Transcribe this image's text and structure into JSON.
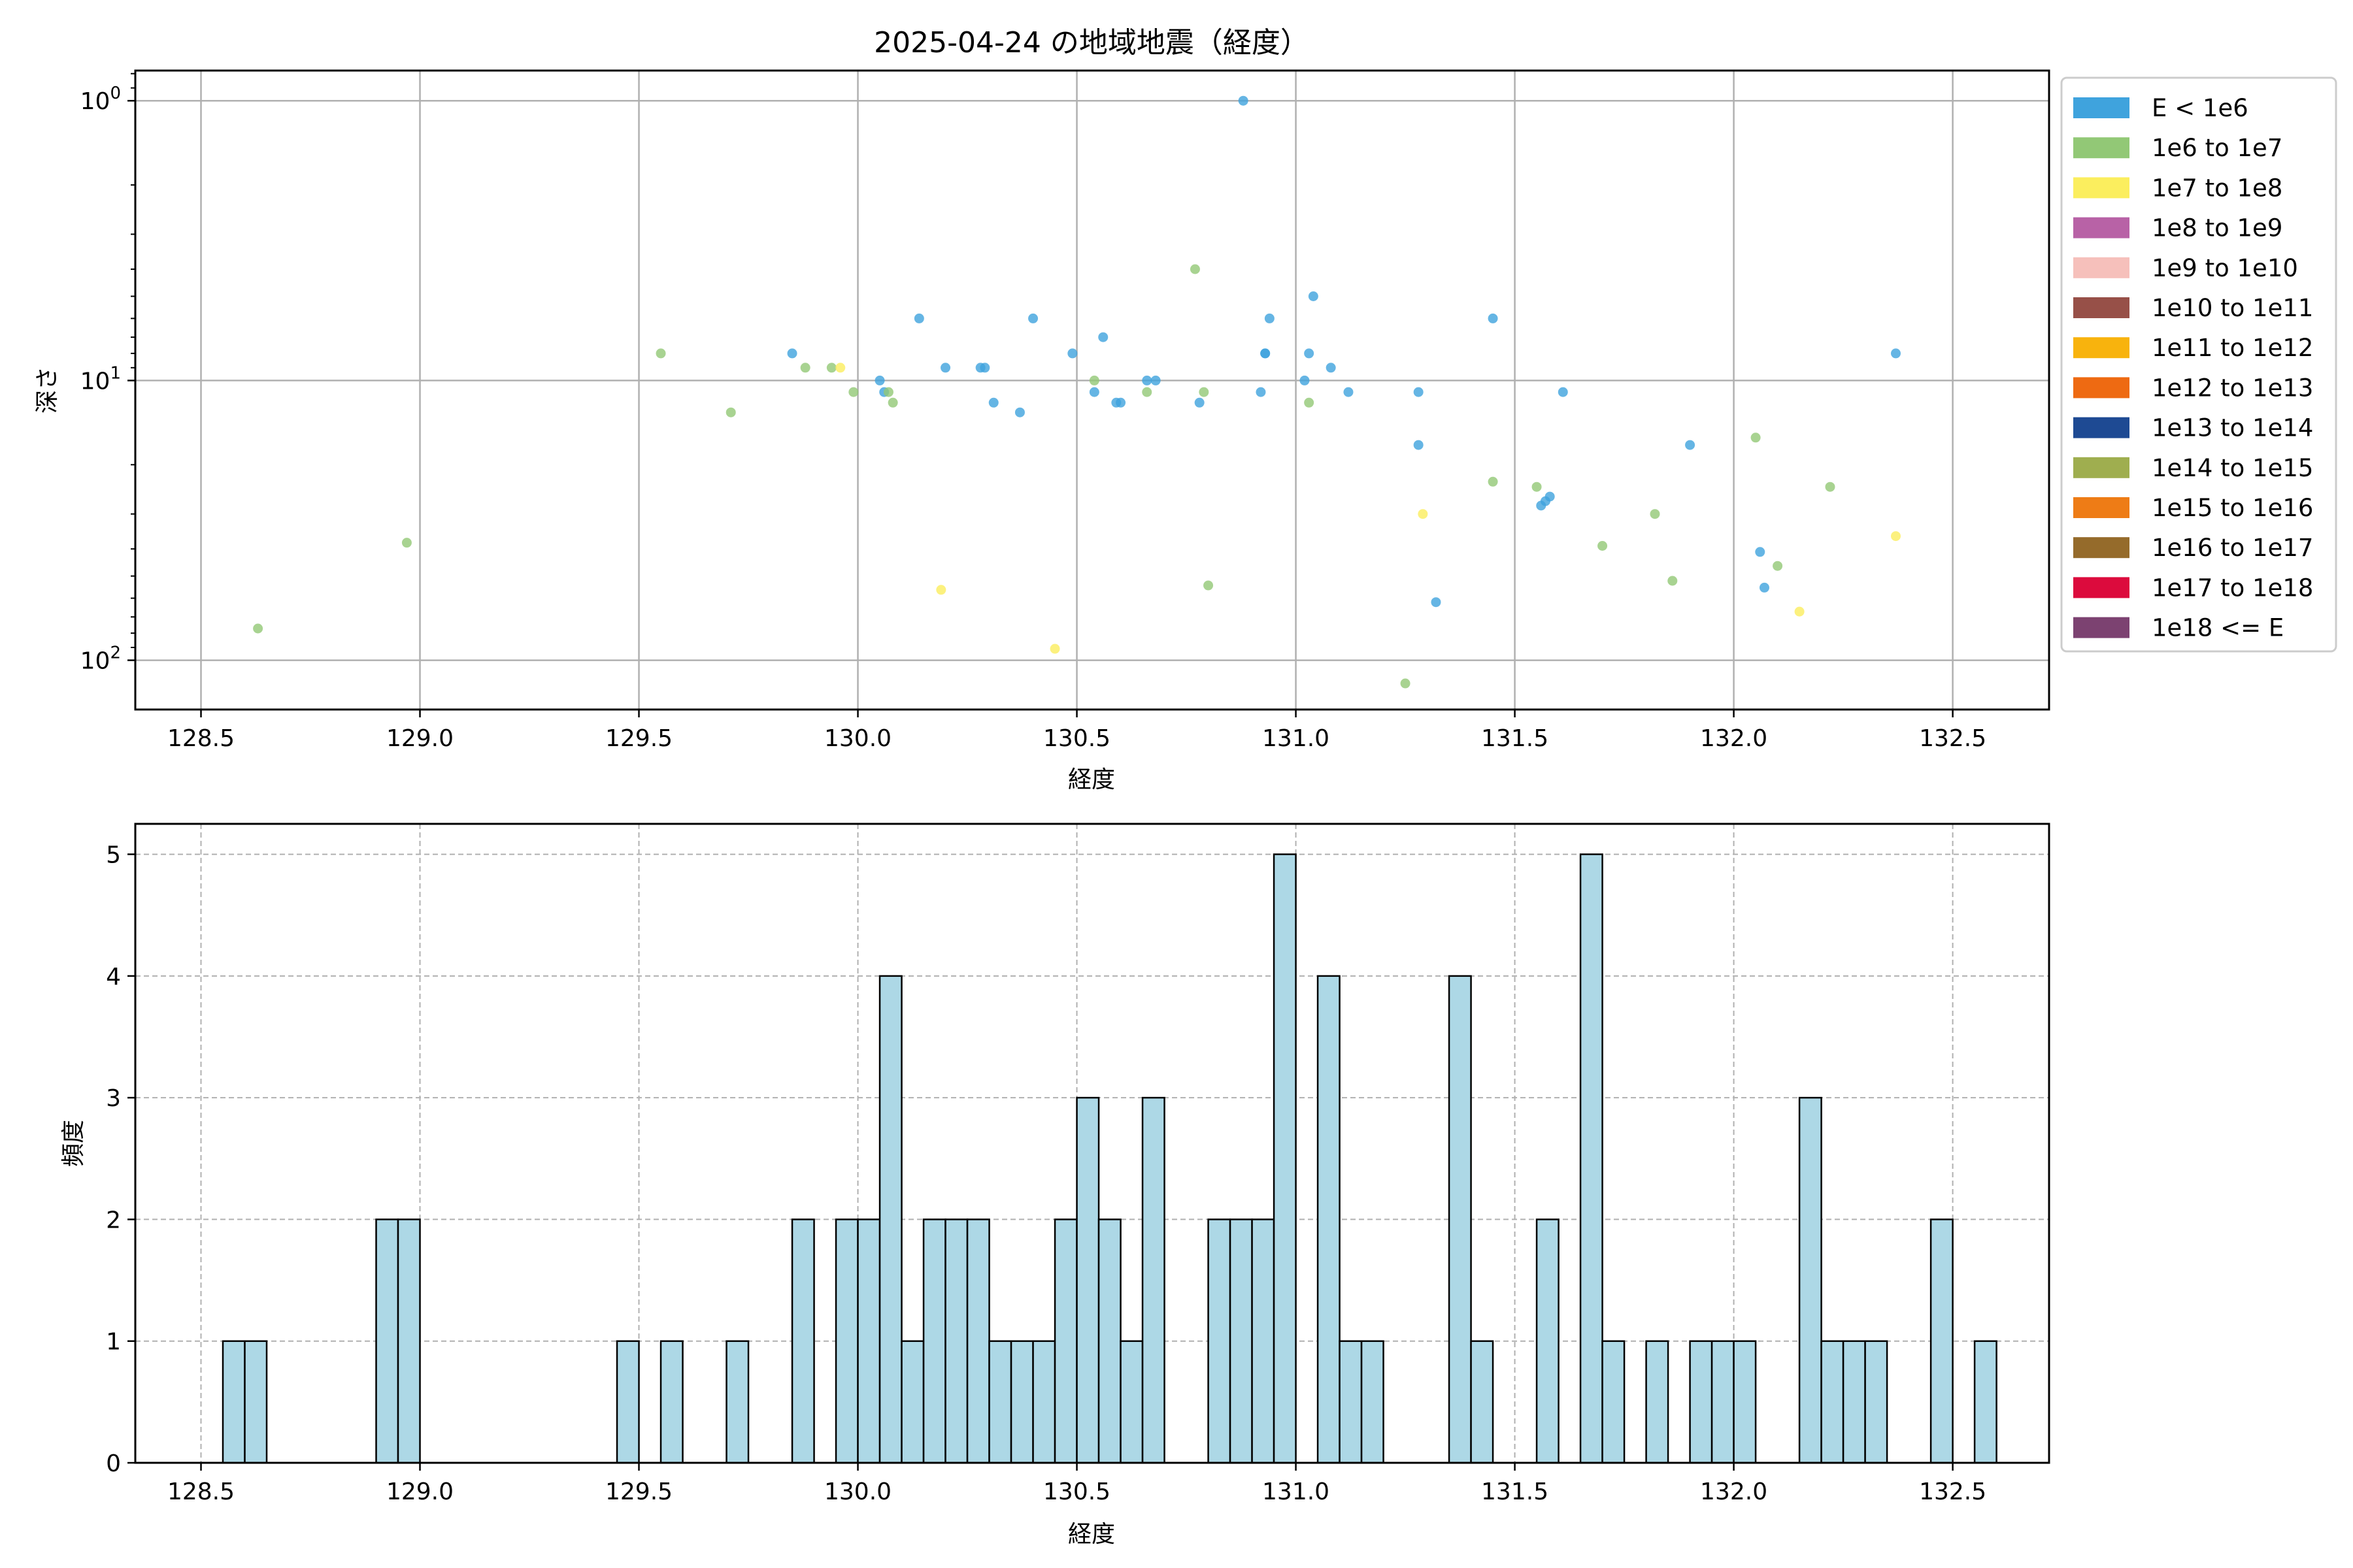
{
  "chart_data": [
    {
      "type": "scatter",
      "title": "2025-04-24 の地域地震（経度）",
      "xlabel": "経度",
      "ylabel": "深さ",
      "yscale": "log",
      "yinverted": true,
      "xlim": [
        128.35,
        132.72
      ],
      "ylim": [
        0.78,
        150
      ],
      "xticks": [
        "128.5",
        "129.0",
        "129.5",
        "130.0",
        "130.5",
        "131.0",
        "131.5",
        "132.0",
        "132.5"
      ],
      "xtick_values": [
        128.5,
        129.0,
        129.5,
        130.0,
        130.5,
        131.0,
        131.5,
        132.0,
        132.5
      ],
      "yticks": [
        {
          "value": 1,
          "base": "10",
          "exp": "0"
        },
        {
          "value": 10,
          "base": "10",
          "exp": "1"
        },
        {
          "value": 100,
          "base": "10",
          "exp": "2"
        }
      ],
      "grid": true,
      "legend_position": "outside-right",
      "legend": [
        {
          "label": "E < 1e6",
          "color": "#3fa3dd"
        },
        {
          "label": "1e6 to 1e7",
          "color": "#92c876"
        },
        {
          "label": "1e7 to 1e8",
          "color": "#fbee5e"
        },
        {
          "label": "1e8 to 1e9",
          "color": "#b862a6"
        },
        {
          "label": "1e9 to 1e10",
          "color": "#f6c0bb"
        },
        {
          "label": "1e10 to 1e11",
          "color": "#975048"
        },
        {
          "label": "1e11 to 1e12",
          "color": "#f8b30d"
        },
        {
          "label": "1e12 to 1e13",
          "color": "#ee6a12"
        },
        {
          "label": "1e13 to 1e14",
          "color": "#1e4a93"
        },
        {
          "label": "1e14 to 1e15",
          "color": "#9fae4f"
        },
        {
          "label": "1e15 to 1e16",
          "color": "#ee7c16"
        },
        {
          "label": "1e16 to 1e17",
          "color": "#956b2b"
        },
        {
          "label": "1e17 to 1e18",
          "color": "#dc0b3d"
        },
        {
          "label": "1e18 <= E",
          "color": "#7c4271"
        }
      ],
      "series": [
        {
          "name": "E < 1e6",
          "color": "#3fa3dd",
          "points": [
            [
              130.88,
              1
            ],
            [
              129.85,
              8
            ],
            [
              130.14,
              6
            ],
            [
              130.05,
              10
            ],
            [
              130.06,
              11
            ],
            [
              130.2,
              9
            ],
            [
              130.28,
              9
            ],
            [
              130.29,
              9
            ],
            [
              130.31,
              12
            ],
            [
              130.37,
              13
            ],
            [
              130.4,
              6
            ],
            [
              130.49,
              8
            ],
            [
              130.54,
              11
            ],
            [
              130.56,
              7
            ],
            [
              130.59,
              12
            ],
            [
              130.6,
              12
            ],
            [
              130.66,
              10
            ],
            [
              130.68,
              10
            ],
            [
              130.78,
              12
            ],
            [
              130.92,
              11
            ],
            [
              130.93,
              8
            ],
            [
              130.93,
              8
            ],
            [
              130.94,
              6
            ],
            [
              131.02,
              10
            ],
            [
              131.03,
              8
            ],
            [
              131.04,
              5
            ],
            [
              131.08,
              9
            ],
            [
              131.12,
              11
            ],
            [
              131.28,
              11
            ],
            [
              131.28,
              17
            ],
            [
              131.32,
              62
            ],
            [
              131.45,
              6
            ],
            [
              131.56,
              28
            ],
            [
              131.57,
              27
            ],
            [
              131.58,
              26
            ],
            [
              131.61,
              11
            ],
            [
              131.9,
              17
            ],
            [
              132.06,
              41
            ],
            [
              132.07,
              55
            ],
            [
              132.37,
              8
            ]
          ]
        },
        {
          "name": "1e6 to 1e7",
          "color": "#92c876",
          "points": [
            [
              128.63,
              77
            ],
            [
              128.97,
              38
            ],
            [
              129.55,
              8
            ],
            [
              129.71,
              13
            ],
            [
              129.88,
              9
            ],
            [
              129.94,
              9
            ],
            [
              129.99,
              11
            ],
            [
              130.07,
              11
            ],
            [
              130.08,
              12
            ],
            [
              130.54,
              10
            ],
            [
              130.66,
              11
            ],
            [
              130.77,
              4
            ],
            [
              130.79,
              11
            ],
            [
              130.8,
              54
            ],
            [
              131.03,
              12
            ],
            [
              131.25,
              121
            ],
            [
              131.45,
              23
            ],
            [
              131.55,
              24
            ],
            [
              131.7,
              39
            ],
            [
              131.82,
              30
            ],
            [
              131.86,
              52
            ],
            [
              132.05,
              16
            ],
            [
              132.1,
              46
            ],
            [
              132.22,
              24
            ]
          ]
        },
        {
          "name": "1e7 to 1e8",
          "color": "#fbee5e",
          "points": [
            [
              129.96,
              9
            ],
            [
              130.19,
              56
            ],
            [
              130.45,
              91
            ],
            [
              131.29,
              30
            ],
            [
              132.15,
              67
            ],
            [
              132.37,
              36
            ]
          ]
        }
      ]
    },
    {
      "type": "histogram",
      "xlabel": "経度",
      "ylabel": "頻度",
      "xlim": [
        128.35,
        132.72
      ],
      "ylim": [
        0,
        5.25
      ],
      "xticks": [
        "128.5",
        "129.0",
        "129.5",
        "130.0",
        "130.5",
        "131.0",
        "131.5",
        "132.0",
        "132.5"
      ],
      "xtick_values": [
        128.5,
        129.0,
        129.5,
        130.0,
        130.5,
        131.0,
        131.5,
        132.0,
        132.5
      ],
      "yticks": [
        "0",
        "1",
        "2",
        "3",
        "4",
        "5"
      ],
      "ytick_values": [
        0,
        1,
        2,
        3,
        4,
        5
      ],
      "grid": "dashed",
      "bar_color": "#add8e6",
      "bin_start": 128.5,
      "bin_width": 0.05,
      "counts": [
        0,
        1,
        1,
        0,
        0,
        0,
        0,
        0,
        2,
        2,
        0,
        0,
        0,
        0,
        0,
        0,
        0,
        0,
        0,
        1,
        0,
        1,
        0,
        0,
        1,
        0,
        0,
        2,
        0,
        2,
        2,
        4,
        1,
        2,
        2,
        2,
        1,
        1,
        1,
        2,
        3,
        2,
        1,
        3,
        0,
        0,
        2,
        2,
        2,
        5,
        0,
        4,
        1,
        1,
        0,
        0,
        0,
        4,
        1,
        0,
        0,
        2,
        0,
        5,
        1,
        0,
        1,
        0,
        1,
        1,
        1,
        0,
        0,
        3,
        1,
        1,
        1,
        0,
        0,
        2,
        0,
        1
      ]
    }
  ]
}
